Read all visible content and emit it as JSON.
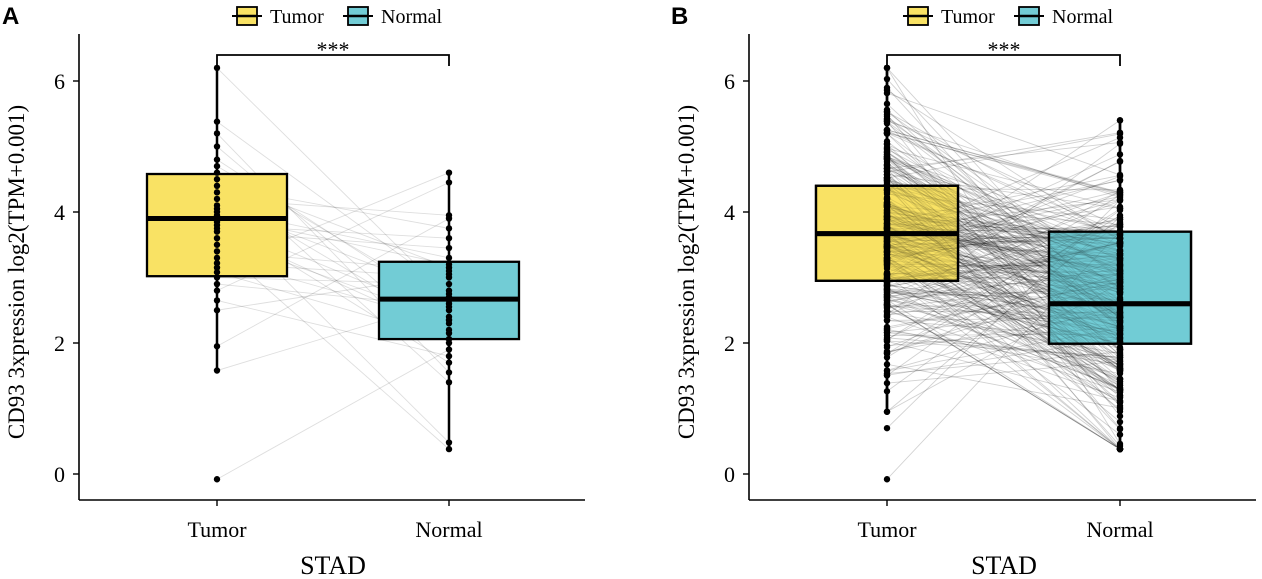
{
  "chart_data": [
    {
      "panel_label": "A",
      "type": "box",
      "legend": {
        "position": "top",
        "entries": [
          {
            "name": "Tumor",
            "color": "#F9E264"
          },
          {
            "name": "Normal",
            "color": "#72CCD5"
          }
        ]
      },
      "xlabel": "STAD",
      "ylabel": "CD93 3xpression log2(TPM+0.001)",
      "ylim": [
        -0.4,
        6.7
      ],
      "yticks": [
        0,
        2,
        4,
        6
      ],
      "significance": "***",
      "categories": [
        "Tumor",
        "Normal"
      ],
      "boxes": [
        {
          "group": "Tumor",
          "q1": 3.02,
          "median": 3.9,
          "q3": 4.58,
          "lower_whisker": 1.58,
          "upper_whisker": 6.2,
          "color": "#F9E264"
        },
        {
          "group": "Normal",
          "q1": 2.06,
          "median": 2.67,
          "q3": 3.24,
          "lower_whisker": 0.38,
          "upper_whisker": 4.6,
          "color": "#72CCD5"
        }
      ],
      "points_tumor": [
        -0.08,
        1.58,
        1.95,
        2.5,
        2.65,
        2.8,
        2.9,
        3.0,
        3.08,
        3.15,
        3.22,
        3.3,
        3.4,
        3.5,
        3.6,
        3.7,
        3.75,
        3.8,
        3.85,
        3.9,
        3.95,
        4.0,
        4.05,
        4.1,
        4.2,
        4.3,
        4.4,
        4.5,
        4.6,
        4.7,
        4.8,
        5.0,
        5.2,
        5.38,
        6.2
      ],
      "points_normal": [
        0.38,
        0.48,
        1.4,
        1.55,
        1.7,
        1.8,
        1.9,
        2.0,
        2.06,
        2.15,
        2.2,
        2.3,
        2.4,
        2.5,
        2.55,
        2.6,
        2.65,
        2.7,
        2.75,
        2.8,
        2.9,
        3.0,
        3.05,
        3.1,
        3.15,
        3.2,
        3.3,
        3.45,
        3.6,
        3.75,
        3.9,
        3.95,
        4.45,
        4.6,
        2.35
      ]
    },
    {
      "panel_label": "B",
      "type": "box",
      "legend": {
        "position": "top",
        "entries": [
          {
            "name": "Tumor",
            "color": "#F9E264"
          },
          {
            "name": "Normal",
            "color": "#72CCD5"
          }
        ]
      },
      "xlabel": "STAD",
      "ylabel": "CD93 3xpression log2(TPM+0.001)",
      "ylim": [
        -0.4,
        6.7
      ],
      "yticks": [
        0,
        2,
        4,
        6
      ],
      "significance": "***",
      "categories": [
        "Tumor",
        "Normal"
      ],
      "boxes": [
        {
          "group": "Tumor",
          "q1": 2.95,
          "median": 3.67,
          "q3": 4.4,
          "lower_whisker": 0.95,
          "upper_whisker": 6.2,
          "color": "#F9E264"
        },
        {
          "group": "Normal",
          "q1": 1.99,
          "median": 2.6,
          "q3": 3.7,
          "lower_whisker": 0.38,
          "upper_whisker": 5.4,
          "color": "#72CCD5"
        }
      ],
      "n_pairs": 300,
      "outliers_tumor": [
        -0.08,
        0.7
      ],
      "points_tumor_range": [
        0.95,
        6.2
      ],
      "points_normal_range": [
        0.38,
        5.4
      ]
    }
  ]
}
